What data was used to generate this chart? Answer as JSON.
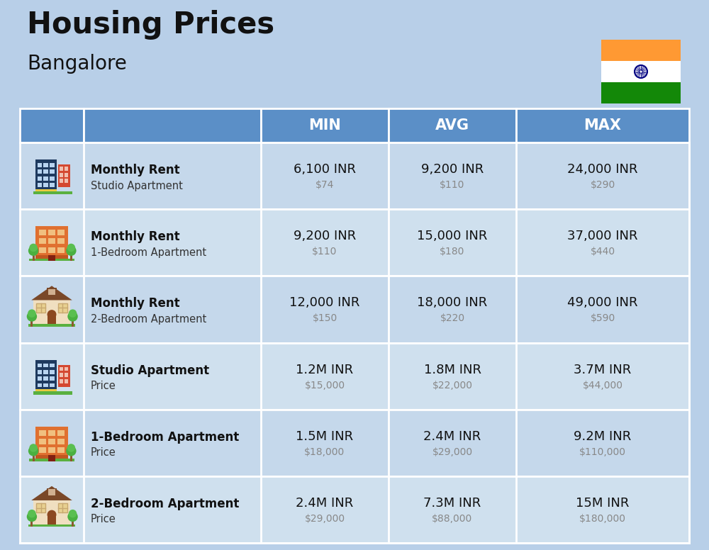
{
  "title": "Housing Prices",
  "subtitle": "Bangalore",
  "bg_color": "#b8cfe8",
  "col_headers": [
    "MIN",
    "AVG",
    "MAX"
  ],
  "header_bg": "#5b8fc7",
  "header_text_color": "#ffffff",
  "row_bg_even": "#c5d8eb",
  "row_bg_odd": "#cfe0ee",
  "cell_border": "#ffffff",
  "rows": [
    {
      "bold_label": "Monthly Rent",
      "sub_label": "Studio Apartment",
      "min_main": "6,100 INR",
      "min_sub": "$74",
      "avg_main": "9,200 INR",
      "avg_sub": "$110",
      "max_main": "24,000 INR",
      "max_sub": "$290",
      "icon_type": "studio_blue"
    },
    {
      "bold_label": "Monthly Rent",
      "sub_label": "1-Bedroom Apartment",
      "min_main": "9,200 INR",
      "min_sub": "$110",
      "avg_main": "15,000 INR",
      "avg_sub": "$180",
      "max_main": "37,000 INR",
      "max_sub": "$440",
      "icon_type": "one_bed_orange"
    },
    {
      "bold_label": "Monthly Rent",
      "sub_label": "2-Bedroom Apartment",
      "min_main": "12,000 INR",
      "min_sub": "$150",
      "avg_main": "18,000 INR",
      "avg_sub": "$220",
      "max_main": "49,000 INR",
      "max_sub": "$590",
      "icon_type": "two_bed_house"
    },
    {
      "bold_label": "Studio Apartment",
      "sub_label": "Price",
      "min_main": "1.2M INR",
      "min_sub": "$15,000",
      "avg_main": "1.8M INR",
      "avg_sub": "$22,000",
      "max_main": "3.7M INR",
      "max_sub": "$44,000",
      "icon_type": "studio_blue"
    },
    {
      "bold_label": "1-Bedroom Apartment",
      "sub_label": "Price",
      "min_main": "1.5M INR",
      "min_sub": "$18,000",
      "avg_main": "2.4M INR",
      "avg_sub": "$29,000",
      "max_main": "9.2M INR",
      "max_sub": "$110,000",
      "icon_type": "one_bed_orange"
    },
    {
      "bold_label": "2-Bedroom Apartment",
      "sub_label": "Price",
      "min_main": "2.4M INR",
      "min_sub": "$29,000",
      "avg_main": "7.3M INR",
      "avg_sub": "$88,000",
      "max_main": "15M INR",
      "max_sub": "$180,000",
      "icon_type": "two_bed_house"
    }
  ],
  "india_flag_colors": [
    "#FF9933",
    "#FFFFFF",
    "#138808"
  ],
  "title_fontsize": 30,
  "subtitle_fontsize": 20,
  "header_fontsize": 15,
  "main_val_fontsize": 13,
  "sub_val_fontsize": 10,
  "label_bold_fontsize": 12,
  "label_sub_fontsize": 10.5
}
